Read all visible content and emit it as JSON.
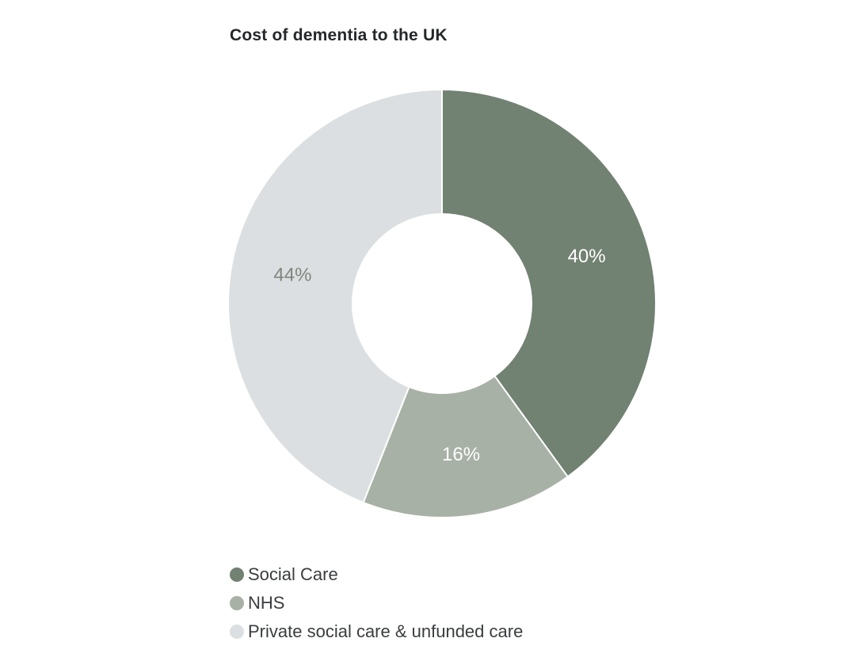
{
  "colors": {
    "social_care": "#718172",
    "nhs": "#a8b1a5",
    "private": "#dcdfe1",
    "label_on_dark": "#ffffff",
    "label_on_light": "#7e877d"
  },
  "chart_data": {
    "type": "pie",
    "variant": "donut",
    "title": "Cost of dementia to the UK",
    "slices": [
      {
        "name": "Social Care",
        "value": 40,
        "label": "40%",
        "color": "#718172",
        "label_color": "#ffffff"
      },
      {
        "name": "NHS",
        "value": 16,
        "label": "16%",
        "color": "#a8b1a5",
        "label_color": "#ffffff"
      },
      {
        "name": "Private social care & unfunded care",
        "value": 44,
        "label": "44%",
        "color": "#dcdfe1",
        "label_color": "#7e877d"
      }
    ],
    "legend_position": "bottom-left"
  }
}
